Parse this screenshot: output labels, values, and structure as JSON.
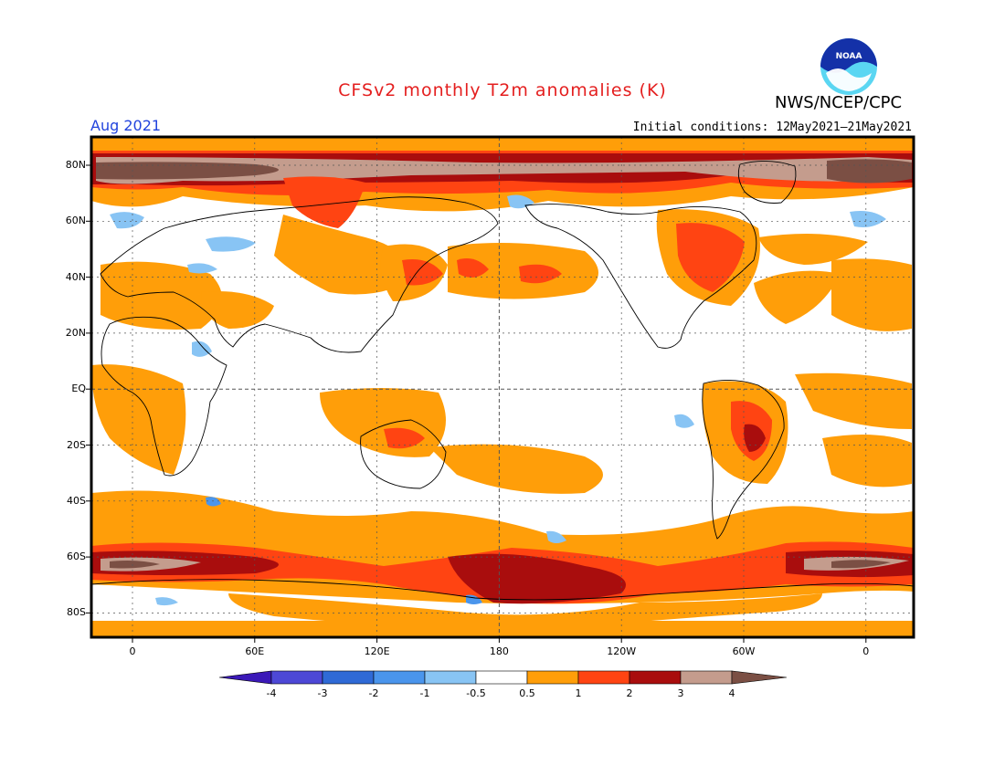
{
  "header": {
    "title": "CFSv2 monthly T2m anomalies (K)",
    "valid_month": "Aug 2021",
    "initial_conditions": "Initial conditions: 12May2021–21May2021",
    "agency": "NWS/NCEP/CPC",
    "logo_text": "NOAA"
  },
  "map": {
    "lat_labels": [
      "80N",
      "60N",
      "40N",
      "20N",
      "EQ",
      "20S",
      "40S",
      "60S",
      "80S"
    ],
    "lon_labels": [
      "0",
      "60E",
      "120E",
      "180",
      "120W",
      "60W",
      "0"
    ]
  },
  "colorbar": {
    "levels": [
      "-4",
      "-3",
      "-2",
      "-1",
      "-0.5",
      "0.5",
      "1",
      "2",
      "3",
      "4"
    ],
    "colors": [
      "#3b19b8",
      "#4d48d6",
      "#2f6ad6",
      "#4a95ec",
      "#88c4f4",
      "#ffffff",
      "#ff9e09",
      "#ff4412",
      "#a90d0d",
      "#c49c8d",
      "#7b4f44"
    ]
  }
}
